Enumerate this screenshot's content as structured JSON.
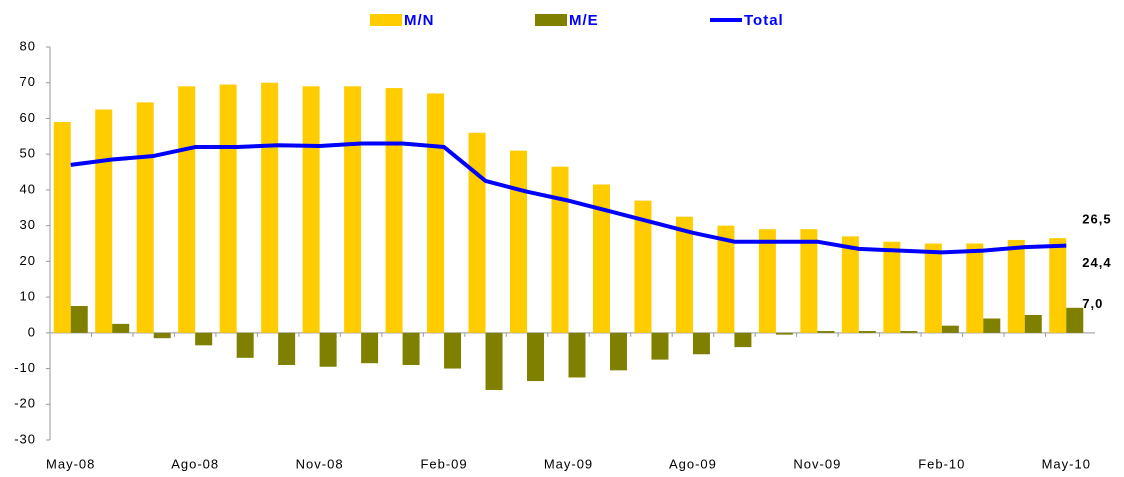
{
  "chart_data": {
    "type": "bar-line",
    "categories": [
      "May-08",
      null,
      null,
      "Ago-08",
      null,
      null,
      "Nov-08",
      null,
      null,
      "Feb-09",
      null,
      null,
      "May-09",
      null,
      null,
      "Ago-09",
      null,
      null,
      "Nov-09",
      null,
      null,
      "Feb-10",
      null,
      null,
      "May-10"
    ],
    "series": [
      {
        "name": "M/N",
        "type": "bar",
        "color": "#ffcc00",
        "values": [
          59,
          62.5,
          64.5,
          69,
          69.5,
          70,
          69,
          69,
          68.5,
          67,
          56,
          51,
          46.5,
          41.5,
          37,
          32.5,
          30,
          29,
          29,
          27,
          25.5,
          25,
          25,
          26,
          26.5
        ],
        "value_labels": [
          null,
          null,
          null,
          null,
          null,
          null,
          null,
          null,
          null,
          null,
          null,
          null,
          null,
          null,
          null,
          null,
          null,
          null,
          null,
          null,
          null,
          null,
          null,
          null,
          "26,5"
        ]
      },
      {
        "name": "M/E",
        "type": "bar",
        "color": "#808000",
        "values": [
          7.5,
          2.5,
          -1.5,
          -3.5,
          -7,
          -9,
          -9.5,
          -8.5,
          -9,
          -10,
          -16,
          -13.5,
          -12.5,
          -10.5,
          -7.5,
          -6,
          -4,
          -0.5,
          0.5,
          0.5,
          0.5,
          2,
          4,
          5,
          7.0
        ],
        "value_labels": [
          null,
          null,
          null,
          null,
          null,
          null,
          null,
          null,
          null,
          null,
          null,
          null,
          null,
          null,
          null,
          null,
          null,
          null,
          null,
          null,
          null,
          null,
          null,
          null,
          "7,0"
        ]
      },
      {
        "name": "Total",
        "type": "line",
        "color": "#0000ff",
        "values": [
          47,
          48.5,
          49.5,
          52,
          52,
          52.5,
          52.3,
          53,
          53,
          52,
          42.5,
          39.5,
          37,
          34,
          31,
          28,
          25.5,
          25.5,
          25.5,
          23.5,
          23,
          22.5,
          23,
          24,
          24.4
        ],
        "value_labels": [
          null,
          null,
          null,
          null,
          null,
          null,
          null,
          null,
          null,
          null,
          null,
          null,
          null,
          null,
          null,
          null,
          null,
          null,
          null,
          null,
          null,
          null,
          null,
          null,
          "24,4"
        ]
      }
    ],
    "ylim": [
      -30,
      80
    ],
    "yticks": [
      80,
      70,
      60,
      50,
      40,
      30,
      20,
      10,
      0,
      -10,
      -20,
      -30
    ],
    "legend": "top"
  }
}
